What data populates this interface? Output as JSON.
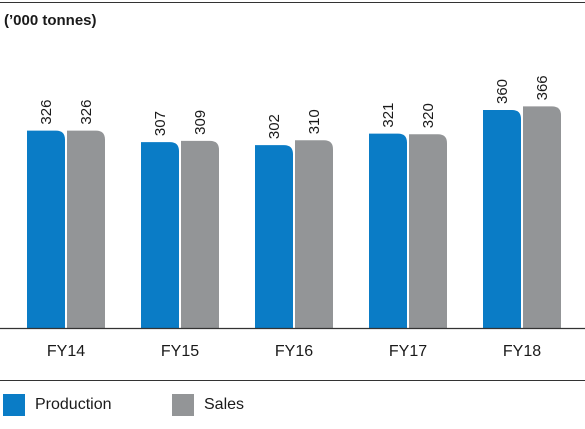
{
  "chart_data": {
    "type": "bar",
    "title": "",
    "unit_label": "(’000 tonnes)",
    "categories": [
      "FY14",
      "FY15",
      "FY16",
      "FY17",
      "FY18"
    ],
    "series": [
      {
        "name": "Production",
        "values": [
          326,
          307,
          302,
          321,
          360
        ],
        "value_labels": [
          "326",
          "307",
          "302",
          "321",
          "360"
        ],
        "color": "#0a7cc6"
      },
      {
        "name": "Sales",
        "values": [
          326,
          309,
          310,
          320,
          366
        ],
        "value_labels": [
          "326",
          "309",
          "310",
          "320",
          "366"
        ],
        "color": "#939597"
      }
    ],
    "grid": false,
    "legend_position": "bottom-left"
  }
}
